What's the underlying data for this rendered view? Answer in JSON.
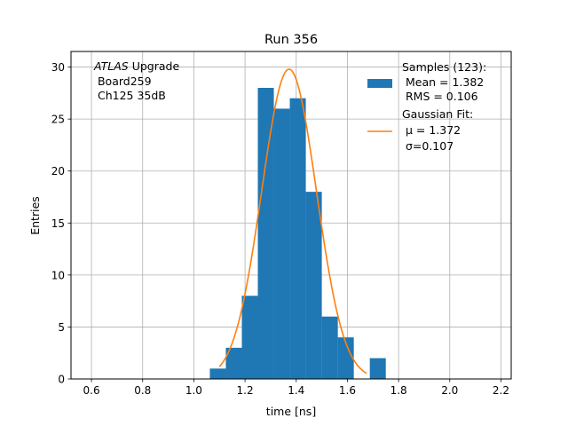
{
  "chart_data": {
    "type": "bar",
    "title": "Run 356",
    "xlabel": "time [ns]",
    "ylabel": "Entries",
    "xlim": [
      0.52,
      2.24
    ],
    "ylim": [
      0,
      31.5
    ],
    "xticks": [
      "0.6",
      "0.8",
      "1.0",
      "1.2",
      "1.4",
      "1.6",
      "1.8",
      "2.0",
      "2.2"
    ],
    "yticks": [
      "0",
      "5",
      "10",
      "15",
      "20",
      "25",
      "30"
    ],
    "grid": true,
    "legend_position": "top-right",
    "histogram": {
      "name": "Samples",
      "color": "#1f77b4",
      "bin_width": 0.0625,
      "bin_starts": [
        1.0625,
        1.125,
        1.1875,
        1.25,
        1.3125,
        1.375,
        1.4375,
        1.5,
        1.5625,
        1.625,
        1.6875
      ],
      "counts": [
        1,
        3,
        8,
        28,
        26,
        27,
        18,
        6,
        4,
        0,
        2
      ]
    },
    "gaussian_fit": {
      "name": "Gaussian Fit",
      "color": "#ff7f0e",
      "amplitude": 29.8,
      "mu": 1.372,
      "sigma": 0.107,
      "x_range": [
        1.1,
        1.675
      ]
    },
    "legend": [
      {
        "kind": "patch",
        "color": "#1f77b4",
        "lines": [
          "Samples (123):",
          " Mean = 1.382",
          " RMS = 0.106"
        ]
      },
      {
        "kind": "line",
        "color": "#ff7f0e",
        "lines": [
          "Gaussian Fit:",
          " μ = 1.372",
          " σ=0.107"
        ]
      }
    ],
    "annotation": {
      "atlas": "ATLAS",
      "rest": " Upgrade",
      "lines": [
        " Board259",
        " Ch125 35dB"
      ]
    }
  }
}
